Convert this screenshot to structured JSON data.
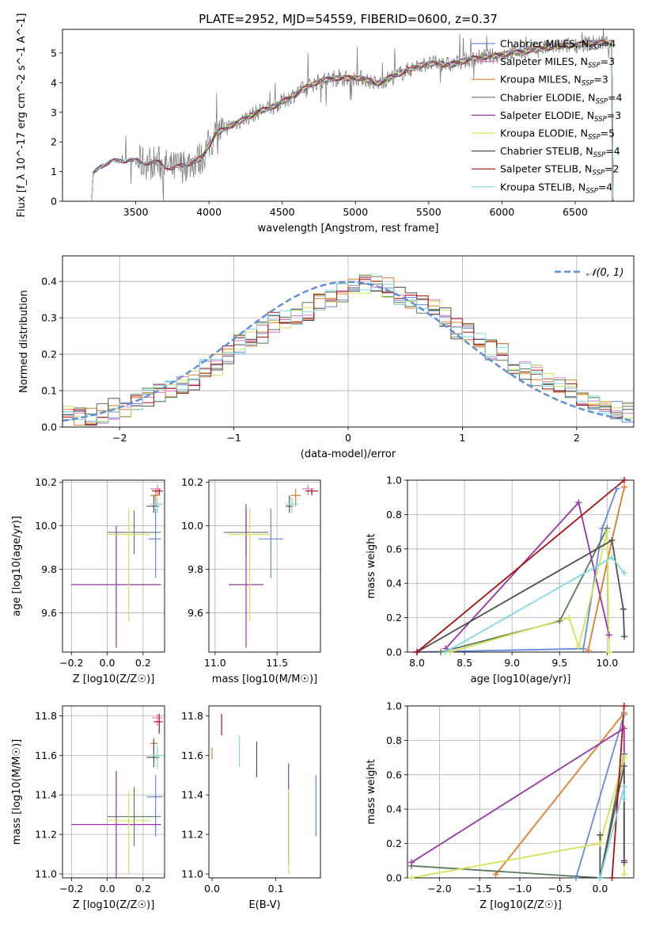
{
  "figure": {
    "title": "PLATE=2952, MJD=54559, FIBERID=0600, z=0.37"
  },
  "colors": {
    "chabrier_miles": "#6688dd",
    "salpeter_miles": "#e377c2",
    "kroupa_miles": "#e07b2a",
    "chabrier_elodie": "#5a7a5a",
    "salpeter_elodie": "#9933aa",
    "kroupa_elodie": "#d4e157",
    "chabrier_stelib": "#505050",
    "salpeter_stelib": "#aa1111",
    "kroupa_stelib": "#80d8e0",
    "gaussian": "#5b8ed6",
    "spectrum": "#808080"
  },
  "chart_data": [
    {
      "id": "spectrum",
      "type": "line",
      "xlabel": "wavelength [Angstrom, rest frame]",
      "ylabel": "Flux [f_λ 10^-17 erg cm^-2 s^-1 A^-1]",
      "xlim": [
        3000,
        6900
      ],
      "ylim": [
        0,
        5.8
      ],
      "xticks": [
        3500,
        4000,
        4500,
        5000,
        5500,
        6000,
        6500
      ],
      "yticks": [
        0,
        1,
        2,
        3,
        4,
        5
      ],
      "legend": "top-right",
      "grid": false,
      "series_names": [
        "Chabrier MILES, N_SSP=4",
        "Salpeter MILES, N_SSP=3",
        "Kroupa MILES, N_SSP=3",
        "Chabrier ELODIE, N_SSP=4",
        "Salpeter ELODIE, N_SSP=3",
        "Kroupa ELODIE, N_SSP=5",
        "Chabrier STELIB, N_SSP=4",
        "Salpeter STELIB, N_SSP=2",
        "Kroupa STELIB, N_SSP=4"
      ],
      "continuum": [
        [
          3200,
          0.0
        ],
        [
          3210,
          0.9
        ],
        [
          3260,
          1.2
        ],
        [
          3350,
          1.35
        ],
        [
          3450,
          1.4
        ],
        [
          3550,
          1.3
        ],
        [
          3650,
          1.3
        ],
        [
          3750,
          1.1
        ],
        [
          3850,
          1.25
        ],
        [
          3950,
          1.45
        ],
        [
          4050,
          2.3
        ],
        [
          4150,
          2.55
        ],
        [
          4250,
          2.8
        ],
        [
          4350,
          3.05
        ],
        [
          4450,
          3.2
        ],
        [
          4550,
          3.5
        ],
        [
          4650,
          3.8
        ],
        [
          4750,
          4.05
        ],
        [
          4850,
          4.15
        ],
        [
          4950,
          4.15
        ],
        [
          5050,
          4.15
        ],
        [
          5150,
          3.95
        ],
        [
          5250,
          4.2
        ],
        [
          5350,
          4.4
        ],
        [
          5450,
          4.6
        ],
        [
          5550,
          4.65
        ],
        [
          5650,
          4.6
        ],
        [
          5750,
          4.75
        ],
        [
          5850,
          4.85
        ],
        [
          5950,
          4.9
        ],
        [
          6050,
          5.0
        ],
        [
          6150,
          5.05
        ],
        [
          6250,
          5.15
        ],
        [
          6350,
          5.2
        ],
        [
          6450,
          5.25
        ],
        [
          6550,
          5.3
        ],
        [
          6650,
          5.35
        ],
        [
          6750,
          5.35
        ]
      ]
    },
    {
      "id": "residuals",
      "type": "line",
      "xlabel": "(data-model)/error",
      "ylabel": "Normed distribution",
      "xlim": [
        -2.5,
        2.5
      ],
      "ylim": [
        0,
        0.47
      ],
      "xticks": [
        -2,
        -1,
        0,
        1,
        2
      ],
      "yticks": [
        0.0,
        0.1,
        0.2,
        0.3,
        0.4
      ],
      "grid": true,
      "legend": "top-right",
      "gaussian_label": "𝒩(0, 1)",
      "hist_edges": [
        -2.5,
        -2.4,
        -2.3,
        -2.2,
        -2.1,
        -2.0,
        -1.9,
        -1.8,
        -1.7,
        -1.6,
        -1.5,
        -1.4,
        -1.3,
        -1.2,
        -1.1,
        -1.0,
        -0.9,
        -0.8,
        -0.7,
        -0.6,
        -0.5,
        -0.4,
        -0.3,
        -0.2,
        -0.1,
        0.0,
        0.1,
        0.2,
        0.3,
        0.4,
        0.5,
        0.6,
        0.7,
        0.8,
        0.9,
        1.0,
        1.1,
        1.2,
        1.3,
        1.4,
        1.5,
        1.6,
        1.7,
        1.8,
        1.9,
        2.0,
        2.1,
        2.2,
        2.3,
        2.4,
        2.5
      ],
      "hist_base": [
        0.04,
        0.03,
        0.025,
        0.04,
        0.05,
        0.05,
        0.07,
        0.08,
        0.1,
        0.11,
        0.12,
        0.13,
        0.16,
        0.17,
        0.2,
        0.23,
        0.24,
        0.26,
        0.29,
        0.3,
        0.31,
        0.32,
        0.34,
        0.35,
        0.37,
        0.38,
        0.39,
        0.4,
        0.38,
        0.36,
        0.35,
        0.34,
        0.33,
        0.3,
        0.27,
        0.26,
        0.23,
        0.21,
        0.2,
        0.17,
        0.15,
        0.14,
        0.13,
        0.11,
        0.1,
        0.07,
        0.06,
        0.055,
        0.05,
        0.04
      ]
    },
    {
      "id": "age_vs_Z",
      "type": "scatter",
      "xlabel": "Z [log10(Z/Z☉)]",
      "ylabel": "age  [log10(age/yr)]",
      "xlim": [
        -0.25,
        0.32
      ],
      "ylim": [
        9.42,
        10.21
      ],
      "xticks": [
        -0.2,
        0.0,
        0.2
      ],
      "yticks": [
        9.6,
        9.8,
        10.0,
        10.2
      ],
      "grid": true,
      "points": [
        {
          "x": 0.27,
          "y": 9.94,
          "xerr": [
            0.04,
            0.03
          ],
          "yerr": [
            0.18,
            0.14
          ],
          "c": "chabrier_miles"
        },
        {
          "x": 0.28,
          "y": 10.17,
          "xerr": [
            0.04,
            0.02
          ],
          "yerr": [
            0.03,
            0.02
          ],
          "c": "salpeter_miles"
        },
        {
          "x": 0.27,
          "y": 10.14,
          "xerr": [
            0.03,
            0.02
          ],
          "yerr": [
            0.05,
            0.03
          ],
          "c": "kroupa_miles"
        },
        {
          "x": 0.15,
          "y": 9.97,
          "xerr": [
            0.15,
            0.15
          ],
          "yerr": [
            0.1,
            0.1
          ],
          "c": "chabrier_elodie"
        },
        {
          "x": 0.05,
          "y": 9.73,
          "xerr": [
            0.25,
            0.25
          ],
          "yerr": [
            0.29,
            0.27
          ],
          "c": "salpeter_elodie"
        },
        {
          "x": 0.12,
          "y": 9.96,
          "xerr": [
            0.12,
            0.12
          ],
          "yerr": [
            0.4,
            0.12
          ],
          "c": "kroupa_elodie"
        },
        {
          "x": 0.26,
          "y": 10.09,
          "xerr": [
            0.04,
            0.03
          ],
          "yerr": [
            0.03,
            0.05
          ],
          "c": "chabrier_stelib"
        },
        {
          "x": 0.29,
          "y": 10.16,
          "xerr": [
            0.04,
            0.02
          ],
          "yerr": [
            0.02,
            0.01
          ],
          "c": "salpeter_stelib"
        },
        {
          "x": 0.28,
          "y": 10.1,
          "xerr": [
            0.04,
            0.03
          ],
          "yerr": [
            0.04,
            0.03
          ],
          "c": "kroupa_stelib"
        }
      ]
    },
    {
      "id": "age_vs_mass",
      "type": "scatter",
      "xlabel": "mass [log10(M/M☉)]",
      "xlim": [
        10.95,
        11.85
      ],
      "ylim": [
        9.42,
        10.21
      ],
      "xticks": [
        11.0,
        11.5
      ],
      "yticks": [
        9.6,
        9.8,
        10.0,
        10.2
      ],
      "grid": true,
      "points": [
        {
          "x": 11.45,
          "y": 9.94,
          "xerr": [
            0.1,
            0.1
          ],
          "yerr": [
            0.18,
            0.14
          ],
          "c": "chabrier_miles"
        },
        {
          "x": 11.75,
          "y": 10.17,
          "xerr": [
            0.05,
            0.05
          ],
          "yerr": [
            0.03,
            0.02
          ],
          "c": "salpeter_miles"
        },
        {
          "x": 11.65,
          "y": 10.14,
          "xerr": [
            0.04,
            0.04
          ],
          "yerr": [
            0.05,
            0.03
          ],
          "c": "kroupa_miles"
        },
        {
          "x": 11.25,
          "y": 9.97,
          "xerr": [
            0.18,
            0.18
          ],
          "yerr": [
            0.1,
            0.1
          ],
          "c": "chabrier_elodie"
        },
        {
          "x": 11.25,
          "y": 9.73,
          "xerr": [
            0.14,
            0.14
          ],
          "yerr": [
            0.29,
            0.37
          ],
          "c": "salpeter_elodie"
        },
        {
          "x": 11.28,
          "y": 9.96,
          "xerr": [
            0.17,
            0.17
          ],
          "yerr": [
            0.4,
            0.12
          ],
          "c": "kroupa_elodie"
        },
        {
          "x": 11.6,
          "y": 10.09,
          "xerr": [
            0.03,
            0.03
          ],
          "yerr": [
            0.03,
            0.05
          ],
          "c": "chabrier_stelib"
        },
        {
          "x": 11.78,
          "y": 10.16,
          "xerr": [
            0.05,
            0.05
          ],
          "yerr": [
            0.02,
            0.01
          ],
          "c": "salpeter_stelib"
        },
        {
          "x": 11.62,
          "y": 10.1,
          "xerr": [
            0.05,
            0.05
          ],
          "yerr": [
            0.04,
            0.03
          ],
          "c": "kroupa_stelib"
        }
      ]
    },
    {
      "id": "weight_vs_age",
      "type": "line",
      "xlabel": "age  [log10(age/yr)]",
      "ylabel": "mass weight",
      "xlim": [
        7.9,
        10.28
      ],
      "ylim": [
        0,
        1.0
      ],
      "xticks": [
        8.0,
        8.5,
        9.0,
        9.5,
        10.0
      ],
      "yticks": [
        0.0,
        0.2,
        0.4,
        0.6,
        0.8,
        1.0
      ],
      "grid": true,
      "series": [
        {
          "c": "chabrier_miles",
          "pts": [
            [
              8.0,
              0.0
            ],
            [
              9.75,
              0.02
            ],
            [
              9.95,
              0.72
            ],
            [
              10.1,
              0.95
            ]
          ]
        },
        {
          "c": "kroupa_miles",
          "pts": [
            [
              9.8,
              0.01
            ],
            [
              10.05,
              0.65
            ],
            [
              10.18,
              0.96
            ]
          ]
        },
        {
          "c": "chabrier_elodie",
          "pts": [
            [
              8.25,
              0.0
            ],
            [
              9.5,
              0.18
            ],
            [
              10.0,
              0.72
            ]
          ]
        },
        {
          "c": "salpeter_elodie",
          "pts": [
            [
              8.3,
              0.02
            ],
            [
              9.7,
              0.87
            ],
            [
              10.02,
              0.1
            ]
          ]
        },
        {
          "c": "kroupa_elodie",
          "pts": [
            [
              8.35,
              0.0
            ],
            [
              9.6,
              0.2
            ],
            [
              9.7,
              0.03
            ],
            [
              10.0,
              0.7
            ],
            [
              10.02,
              0.0
            ]
          ]
        },
        {
          "c": "chabrier_stelib",
          "pts": [
            [
              8.0,
              0.0
            ],
            [
              10.05,
              0.65
            ],
            [
              10.17,
              0.25
            ],
            [
              10.18,
              0.09
            ]
          ]
        },
        {
          "c": "salpeter_stelib",
          "pts": [
            [
              8.0,
              0.0
            ],
            [
              10.18,
              1.0
            ]
          ]
        },
        {
          "c": "kroupa_stelib",
          "pts": [
            [
              8.3,
              0.0
            ],
            [
              10.05,
              0.55
            ],
            [
              10.18,
              0.46
            ]
          ]
        }
      ]
    },
    {
      "id": "mass_vs_Z",
      "type": "scatter",
      "xlabel": "Z [log10(Z/Z☉)]",
      "ylabel": "mass [log10(M/M☉)]",
      "xlim": [
        -0.25,
        0.32
      ],
      "ylim": [
        10.98,
        11.85
      ],
      "xticks": [
        -0.2,
        0.0,
        0.2
      ],
      "yticks": [
        11.0,
        11.2,
        11.4,
        11.6,
        11.8
      ],
      "grid": true,
      "points": [
        {
          "x": 0.27,
          "y": 11.39,
          "xerr": [
            0.05,
            0.04
          ],
          "yerr": [
            0.2,
            0.11
          ],
          "c": "chabrier_miles"
        },
        {
          "x": 0.28,
          "y": 11.79,
          "xerr": [
            0.03,
            0.03
          ],
          "yerr": [
            0.04,
            0.02
          ],
          "c": "salpeter_miles"
        },
        {
          "x": 0.26,
          "y": 11.66,
          "xerr": [
            0.02,
            0.02
          ],
          "yerr": [
            0.05,
            0.03
          ],
          "c": "kroupa_miles"
        },
        {
          "x": 0.15,
          "y": 11.29,
          "xerr": [
            0.15,
            0.15
          ],
          "yerr": [
            0.15,
            0.15
          ],
          "c": "chabrier_elodie"
        },
        {
          "x": 0.05,
          "y": 11.25,
          "xerr": [
            0.25,
            0.25
          ],
          "yerr": [
            0.27,
            0.27
          ],
          "c": "salpeter_elodie"
        },
        {
          "x": 0.12,
          "y": 11.27,
          "xerr": [
            0.12,
            0.12
          ],
          "yerr": [
            0.27,
            0.15
          ],
          "c": "kroupa_elodie"
        },
        {
          "x": 0.26,
          "y": 11.59,
          "xerr": [
            0.04,
            0.03
          ],
          "yerr": [
            0.05,
            0.09
          ],
          "c": "chabrier_stelib"
        },
        {
          "x": 0.29,
          "y": 11.77,
          "xerr": [
            0.03,
            0.02
          ],
          "yerr": [
            0.06,
            0.04
          ],
          "c": "salpeter_stelib"
        },
        {
          "x": 0.28,
          "y": 11.6,
          "xerr": [
            0.04,
            0.03
          ],
          "yerr": [
            0.07,
            0.05
          ],
          "c": "kroupa_stelib"
        }
      ]
    },
    {
      "id": "mass_vs_ebv",
      "type": "scatter",
      "xlabel": "E(B-V)",
      "xlim": [
        -0.005,
        0.17
      ],
      "ylim": [
        10.98,
        11.85
      ],
      "xticks": [
        0.0,
        0.1
      ],
      "yticks": [
        11.0,
        11.2,
        11.4,
        11.6,
        11.8
      ],
      "grid": false,
      "points": [
        {
          "x": 0.163,
          "y": 11.39,
          "yerr": [
            0.2,
            0.11
          ],
          "c": "chabrier_miles"
        },
        {
          "x": 0.0,
          "y": 11.62,
          "yerr": [
            0.04,
            0.02
          ],
          "c": "kroupa_miles"
        },
        {
          "x": 0.12,
          "y": 11.42,
          "yerr": [
            0.37,
            0.14
          ],
          "c": "salpeter_elodie"
        },
        {
          "x": 0.12,
          "y": 11.2,
          "yerr": [
            0.2,
            0.23
          ],
          "c": "kroupa_elodie"
        },
        {
          "x": 0.07,
          "y": 11.58,
          "yerr": [
            0.09,
            0.09
          ],
          "c": "chabrier_stelib"
        },
        {
          "x": 0.015,
          "y": 11.76,
          "yerr": [
            0.06,
            0.05
          ],
          "c": "salpeter_stelib"
        },
        {
          "x": 0.043,
          "y": 11.62,
          "yerr": [
            0.08,
            0.08
          ],
          "c": "kroupa_stelib"
        }
      ]
    },
    {
      "id": "weight_vs_Z",
      "type": "line",
      "xlabel": "Z [log10(Z/Z☉)]",
      "ylabel": "mass weight",
      "xlim": [
        -2.4,
        0.42
      ],
      "ylim": [
        0,
        1.0
      ],
      "xticks": [
        -2.0,
        -1.5,
        -1.0,
        -0.5,
        0.0
      ],
      "yticks": [
        0.0,
        0.2,
        0.4,
        0.6,
        0.8,
        1.0
      ],
      "grid": true,
      "series": [
        {
          "c": "chabrier_miles",
          "pts": [
            [
              -0.3,
              0.0
            ],
            [
              0.3,
              0.95
            ]
          ]
        },
        {
          "c": "kroupa_miles",
          "pts": [
            [
              -1.3,
              0.02
            ],
            [
              0.3,
              0.96
            ]
          ]
        },
        {
          "c": "chabrier_elodie",
          "pts": [
            [
              -2.35,
              0.07
            ],
            [
              0.0,
              0.0
            ],
            [
              0.3,
              0.72
            ]
          ]
        },
        {
          "c": "salpeter_elodie",
          "pts": [
            [
              -2.35,
              0.09
            ],
            [
              0.3,
              0.87
            ],
            [
              0.3,
              0.1
            ]
          ]
        },
        {
          "c": "kroupa_elodie",
          "pts": [
            [
              -2.35,
              0.0
            ],
            [
              0.0,
              0.2
            ],
            [
              0.3,
              0.7
            ],
            [
              0.3,
              0.02
            ]
          ]
        },
        {
          "c": "chabrier_stelib",
          "pts": [
            [
              0.0,
              0.25
            ],
            [
              0.0,
              0.0
            ],
            [
              0.3,
              0.65
            ],
            [
              0.3,
              0.09
            ]
          ]
        },
        {
          "c": "salpeter_stelib",
          "pts": [
            [
              0.15,
              0.0
            ],
            [
              0.3,
              1.0
            ]
          ]
        },
        {
          "c": "kroupa_stelib",
          "pts": [
            [
              0.0,
              0.0
            ],
            [
              0.3,
              0.53
            ],
            [
              0.3,
              0.46
            ]
          ]
        }
      ]
    }
  ]
}
